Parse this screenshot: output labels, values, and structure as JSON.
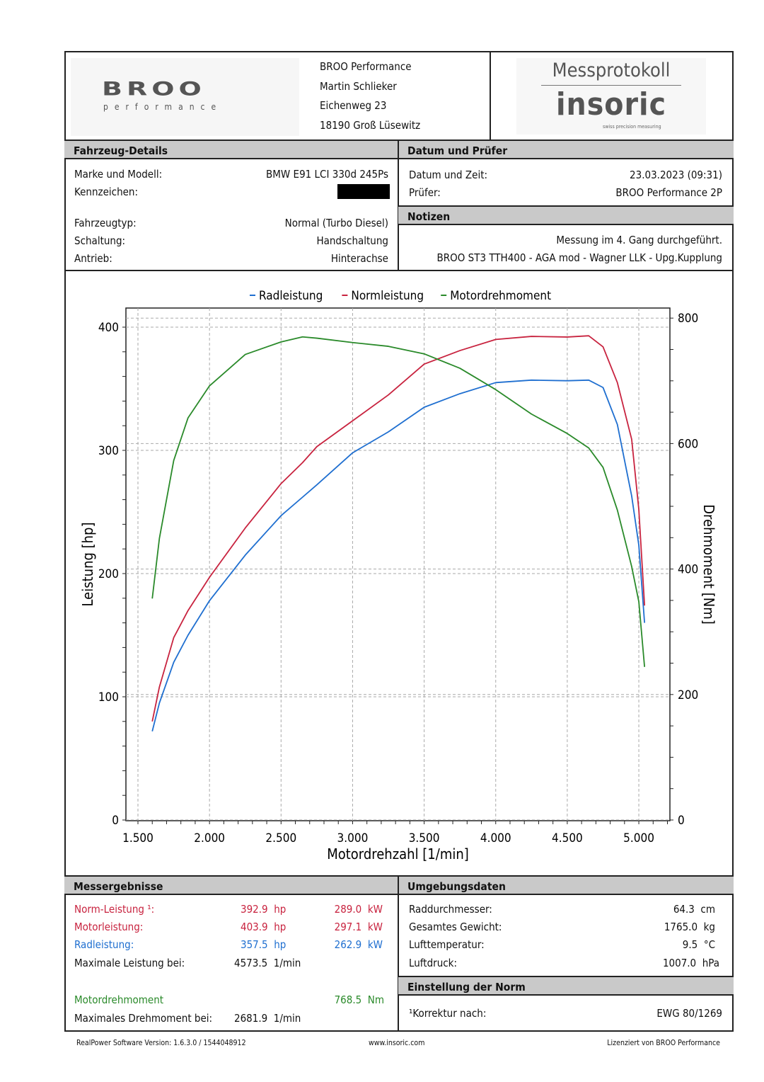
{
  "header": {
    "brand_logo_text": "BROO",
    "brand_logo_sub": "performance",
    "address": [
      "BROO Performance",
      "Martin Schlieker",
      "Eichenweg 23",
      "18190 Groß Lüsewitz"
    ],
    "protocol_title": "Messprotokoll",
    "insoric_logo": "insoric",
    "insoric_tagline": "swiss precision measuring"
  },
  "vehicle": {
    "title": "Fahrzeug-Details",
    "rows": [
      {
        "label": "Marke und Modell:",
        "value": "BMW E91 LCI 330d 245Ps"
      },
      {
        "label": "Kennzeichen:",
        "value": ""
      },
      {
        "label": "Fahrzeugtyp:",
        "value": "Normal (Turbo Diesel)"
      },
      {
        "label": "Schaltung:",
        "value": "Handschaltung"
      },
      {
        "label": "Antrieb:",
        "value": "Hinterachse"
      }
    ]
  },
  "date": {
    "title": "Datum und Prüfer",
    "rows": [
      {
        "label": "Datum und Zeit:",
        "value": "23.03.2023 (09:31)"
      },
      {
        "label": "Prüfer:",
        "value": "BROO Performance 2P"
      }
    ]
  },
  "notes": {
    "title": "Notizen",
    "lines": [
      "Messung im 4. Gang durchgeführt.",
      "BROO ST3 TTH400 - AGA mod - Wagner LLK - Upg.Kupplung"
    ]
  },
  "chart_data": {
    "type": "line",
    "xlabel": "Motordrehzahl [1/min]",
    "ylabel": "Leistung [hp]",
    "y2label": "Drehmoment [Nm]",
    "xlim": [
      1420,
      5220
    ],
    "ylim": [
      0,
      400
    ],
    "y2lim": [
      0,
      800
    ],
    "xticks": [
      "1.500",
      "2.000",
      "2.500",
      "3.000",
      "3.500",
      "4.000",
      "4.500",
      "5.000"
    ],
    "xtick_values": [
      1500,
      2000,
      2500,
      3000,
      3500,
      4000,
      4500,
      5000
    ],
    "yticks": [
      0,
      100,
      200,
      300,
      400
    ],
    "y2ticks": [
      0,
      200,
      400,
      600,
      800
    ],
    "grid": true,
    "legend_position": "top",
    "x": [
      1600,
      1650,
      1750,
      1850,
      2000,
      2250,
      2500,
      2650,
      2750,
      3000,
      3250,
      3500,
      3750,
      4000,
      4250,
      4500,
      4650,
      4750,
      4850,
      4950,
      5000,
      5040
    ],
    "series": [
      {
        "name": "Radleistung",
        "axis": "left",
        "color": "#1f6fd0",
        "values": [
          72,
          95,
          128,
          150,
          178,
          215,
          247,
          262,
          272,
          298,
          315,
          335,
          346,
          355,
          357,
          356.5,
          357,
          351,
          321,
          263,
          223,
          160
        ]
      },
      {
        "name": "Normleistung",
        "axis": "left",
        "color": "#c8233f",
        "values": [
          80,
          108,
          148,
          170,
          197,
          237,
          273,
          290,
          303,
          324,
          345,
          370,
          381,
          390,
          392.5,
          392,
          393,
          384,
          355,
          309,
          252,
          174
        ]
      },
      {
        "name": "Motordrehmoment",
        "axis": "right",
        "color": "#2a8a2a",
        "values": [
          353,
          449,
          573,
          641,
          692,
          742,
          762,
          770,
          768,
          761,
          755,
          743,
          720,
          686,
          647,
          616,
          593,
          562,
          494,
          404,
          348,
          244
        ]
      }
    ]
  },
  "results": {
    "title": "Messergebnisse",
    "norm": {
      "label": "Norm-Leistung ¹:",
      "hp": "392.9  hp",
      "kw": "289.0  kW"
    },
    "motor": {
      "label": "Motorleistung:",
      "hp": "403.9  hp",
      "kw": "297.1  kW"
    },
    "wheel": {
      "label": "Radleistung:",
      "hp": "357.5  hp",
      "kw": "262.9  kW"
    },
    "max_power": {
      "label": "Maximale Leistung bei:",
      "value": "4573.5  1/min"
    },
    "torque": {
      "label": "Motordrehmoment",
      "value": "768.5  Nm"
    },
    "max_torque": {
      "label": "Maximales Drehmoment bei:",
      "value": "2681.9  1/min"
    }
  },
  "environment": {
    "title": "Umgebungsdaten",
    "rows": [
      {
        "label": "Raddurchmesser:",
        "value": "64.3  cm"
      },
      {
        "label": "Gesamtes Gewicht:",
        "value": "1765.0  kg"
      },
      {
        "label": "Lufttemperatur:",
        "value": "9.5  °C"
      },
      {
        "label": "Luftdruck:",
        "value": "1007.0  hPa"
      }
    ]
  },
  "norm": {
    "title": "Einstellung der Norm",
    "label": "¹Korrektur nach:",
    "value": "EWG 80/1269"
  },
  "footer": {
    "version": "RealPower Software Version: 1.6.3.0 / 1544048912",
    "website": "www.insoric.com",
    "license": "Lizenziert von BROO Performance"
  }
}
